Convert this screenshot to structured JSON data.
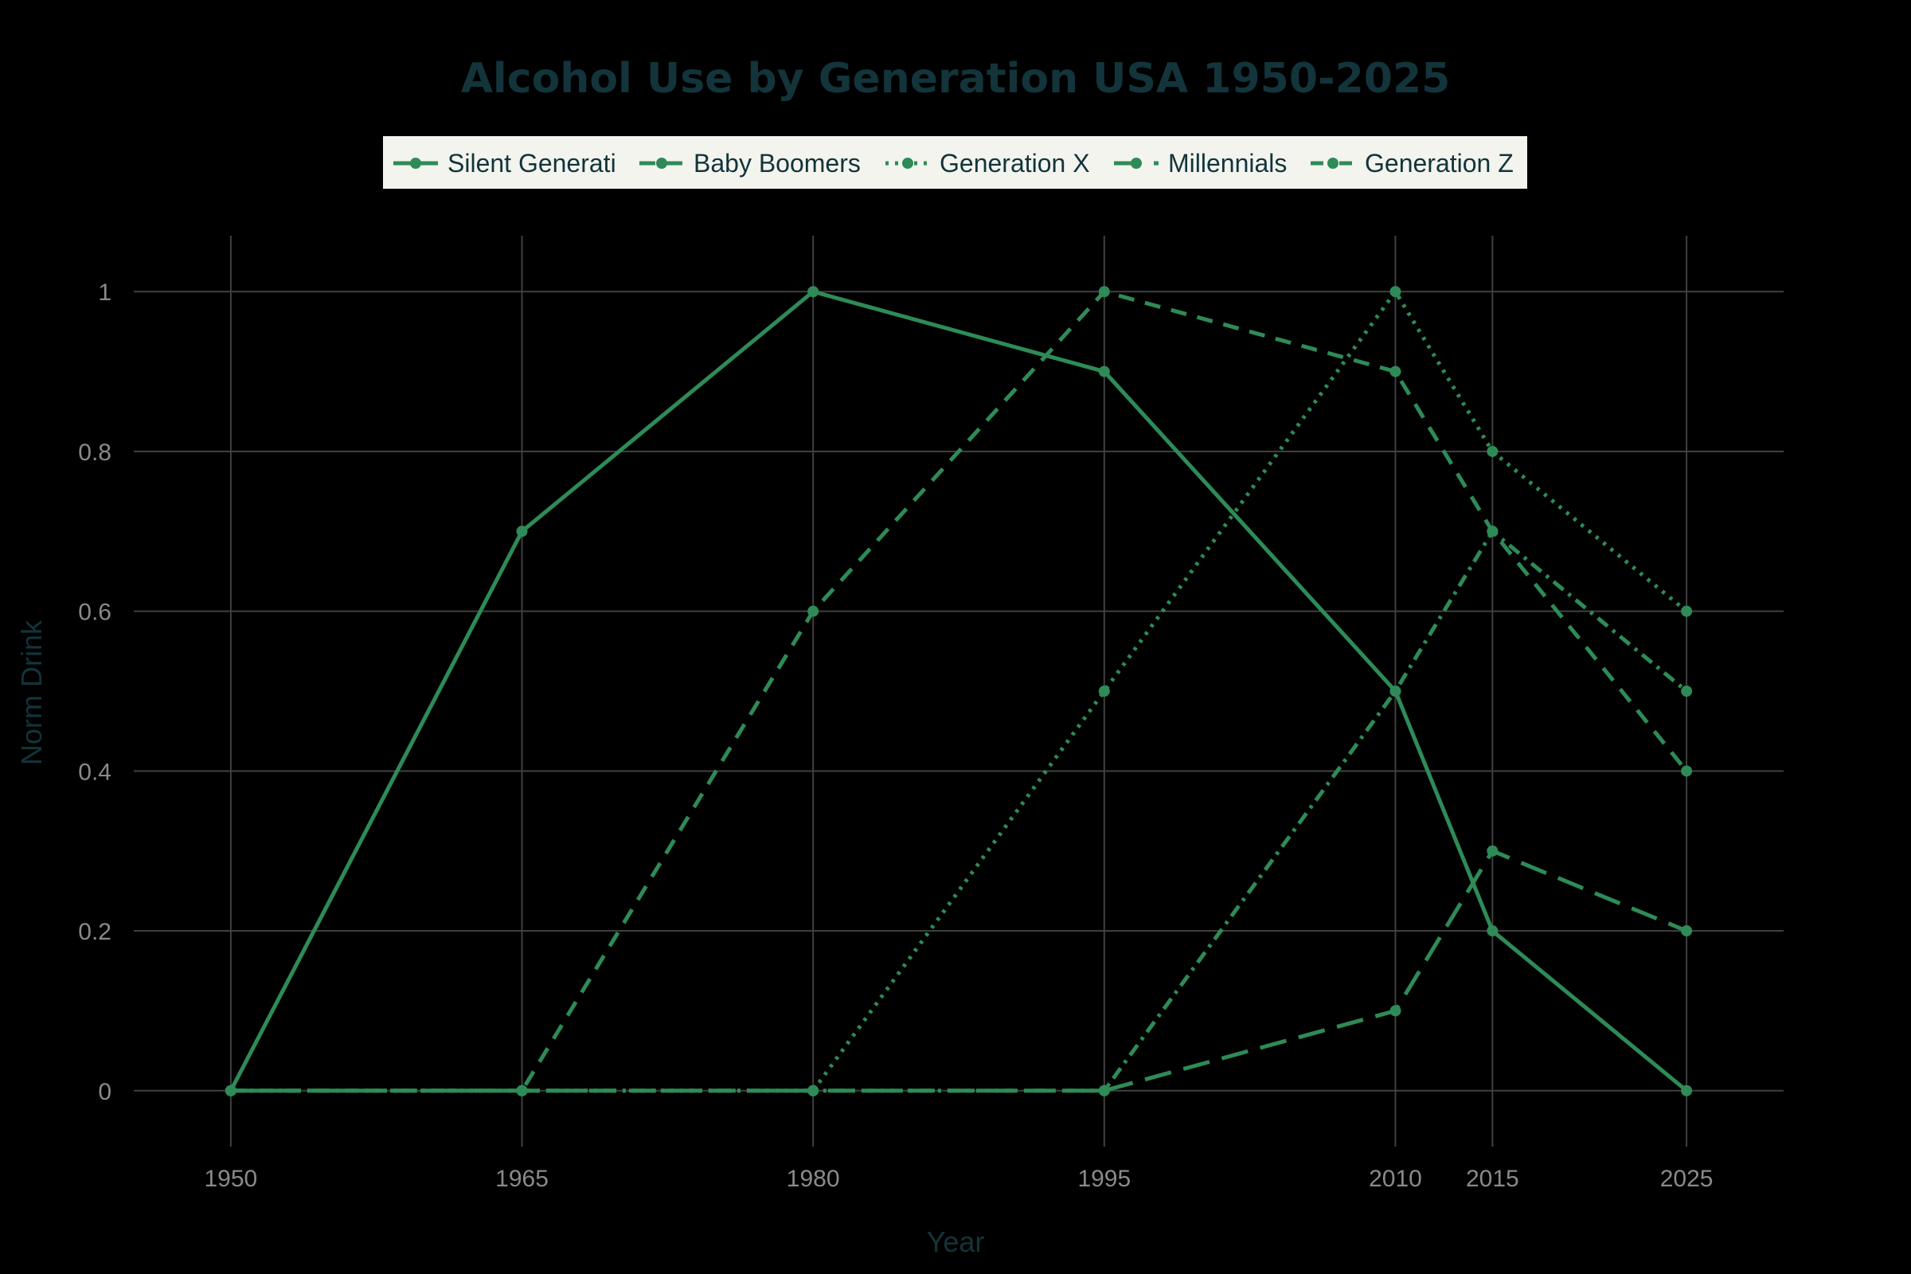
{
  "chart_data": {
    "type": "line",
    "title": "Alcohol Use by Generation USA 1950-2025",
    "xlabel": "Year",
    "ylabel": "Norm Drink",
    "x": [
      1950,
      1965,
      1980,
      1995,
      2010,
      2015,
      2025
    ],
    "x_ticks": [
      "1950",
      "1965",
      "1980",
      "1995",
      "2010",
      "2015",
      "2025"
    ],
    "xlim": [
      1945,
      2030
    ],
    "ylim": [
      -0.07,
      1.07
    ],
    "y_ticks": [
      0,
      0.2,
      0.4,
      0.6,
      0.8,
      1
    ],
    "y_tick_labels": [
      "0",
      "0.2",
      "0.4",
      "0.6",
      "0.8",
      "1"
    ],
    "grid": true,
    "legend_position": "top-center",
    "series": [
      {
        "name": "Silent Generati",
        "dash": "solid",
        "values": [
          0,
          0.7,
          1,
          0.9,
          0.5,
          0.2,
          0
        ]
      },
      {
        "name": "Baby Boomers",
        "dash": "dash",
        "values": [
          0,
          0,
          0.6,
          1,
          0.9,
          0.7,
          0.4
        ]
      },
      {
        "name": "Generation X",
        "dash": "dot",
        "values": [
          0,
          0,
          0,
          0.5,
          1,
          0.8,
          0.6
        ]
      },
      {
        "name": "Millennials",
        "dash": "longdash",
        "values": [
          0,
          0,
          0,
          0,
          0.1,
          0.3,
          0.2
        ]
      },
      {
        "name": "Generation Z",
        "dash": "dashdot",
        "values": [
          0,
          0,
          0,
          0,
          0.5,
          0.7,
          0.5
        ]
      }
    ]
  },
  "colors": {
    "background": "#000000",
    "line": "#2e8b57",
    "grid": "#404040",
    "title": "#13343b",
    "axis_title": "#13343b",
    "tick_label": "#8a8a8a",
    "legend_bg": "#f3f4ee",
    "legend_text": "#13343b"
  }
}
